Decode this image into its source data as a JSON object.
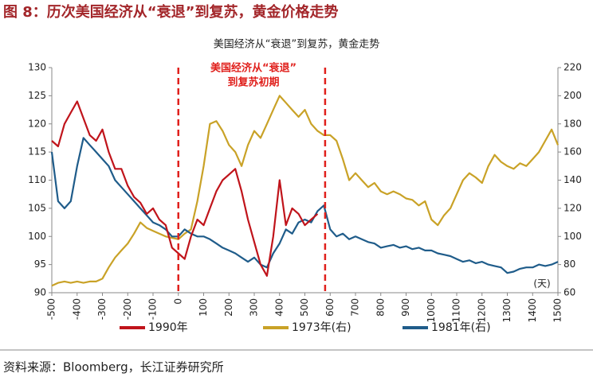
{
  "chart_data": {
    "type": "line",
    "header": "图 8：历次美国经济从“衰退”到复苏，黄金价格走势",
    "title": "美国经济从“衰退”到复苏，黄金走势",
    "annotation": [
      "美国经济从“衰退”",
      "到复苏初期"
    ],
    "x_unit_label": "(天)",
    "source": "资料来源：Bloomberg，长江证券研究所",
    "vlines": [
      0,
      580
    ],
    "x": [
      -500,
      -475,
      -450,
      -425,
      -400,
      -375,
      -350,
      -325,
      -300,
      -275,
      -250,
      -225,
      -200,
      -175,
      -150,
      -125,
      -100,
      -75,
      -50,
      -25,
      0,
      25,
      50,
      75,
      100,
      125,
      150,
      175,
      200,
      225,
      250,
      275,
      300,
      325,
      350,
      375,
      400,
      425,
      450,
      475,
      500,
      525,
      550,
      575,
      600,
      625,
      650,
      675,
      700,
      725,
      750,
      775,
      800,
      825,
      850,
      875,
      900,
      925,
      950,
      975,
      1000,
      1025,
      1050,
      1075,
      1100,
      1125,
      1150,
      1175,
      1200,
      1225,
      1250,
      1275,
      1300,
      1325,
      1350,
      1375,
      1400,
      1425,
      1450,
      1475,
      1500
    ],
    "xlim": [
      -500,
      1500
    ],
    "xticks": [
      -500,
      -400,
      -300,
      -200,
      -100,
      0,
      100,
      200,
      300,
      400,
      500,
      600,
      700,
      800,
      900,
      1000,
      1100,
      1200,
      1300,
      1400,
      1500
    ],
    "ylim": [
      90,
      130
    ],
    "yticks": [
      90,
      95,
      100,
      105,
      110,
      115,
      120,
      125,
      130
    ],
    "y2lim": [
      60,
      220
    ],
    "y2ticks": [
      60,
      80,
      100,
      120,
      140,
      160,
      180,
      200,
      220
    ],
    "series": [
      {
        "name": "1990年",
        "color": "#c0141b",
        "values": [
          117,
          116,
          120,
          122,
          124,
          121,
          118,
          117,
          119,
          115,
          112,
          112,
          109,
          107,
          106,
          104,
          105,
          103,
          102,
          98,
          97,
          96,
          100,
          103,
          102,
          105,
          108,
          110,
          111,
          112,
          108,
          103,
          99,
          95,
          93,
          100,
          110,
          102,
          105,
          104,
          102,
          103,
          104,
          null,
          null,
          null,
          null,
          null,
          null,
          null,
          null,
          null,
          null,
          null,
          null,
          null,
          null,
          null,
          null,
          null,
          null,
          null,
          null,
          null,
          null,
          null,
          null,
          null,
          null,
          null,
          null,
          null,
          null,
          null,
          null,
          null,
          null,
          null,
          null,
          null,
          null
        ]
      },
      {
        "name": "1973年(右)",
        "color": "#c9a227",
        "axis": "y2",
        "values": [
          65,
          67,
          68,
          67,
          68,
          67,
          68,
          68,
          70,
          78,
          85,
          90,
          95,
          102,
          110,
          106,
          104,
          102,
          100,
          99,
          98,
          102,
          105,
          125,
          150,
          180,
          182,
          175,
          165,
          160,
          150,
          165,
          175,
          170,
          180,
          190,
          200,
          195,
          190,
          185,
          190,
          180,
          175,
          172,
          172,
          168,
          155,
          140,
          145,
          140,
          135,
          138,
          132,
          130,
          132,
          130,
          127,
          126,
          122,
          125,
          112,
          108,
          115,
          120,
          130,
          140,
          145,
          142,
          138,
          150,
          158,
          153,
          150,
          148,
          152,
          150,
          155,
          160,
          168,
          176,
          165
        ]
      },
      {
        "name": "1981年(右)",
        "color": "#1f5c8a",
        "axis": "y2",
        "values": [
          160,
          125,
          120,
          125,
          150,
          170,
          165,
          160,
          155,
          150,
          140,
          135,
          130,
          125,
          120,
          115,
          110,
          108,
          105,
          100,
          100,
          105,
          102,
          100,
          100,
          98,
          95,
          92,
          90,
          88,
          85,
          82,
          85,
          80,
          78,
          88,
          95,
          105,
          102,
          110,
          112,
          110,
          118,
          122,
          105,
          100,
          102,
          98,
          100,
          98,
          96,
          95,
          92,
          93,
          94,
          92,
          93,
          91,
          92,
          90,
          90,
          88,
          87,
          86,
          84,
          82,
          83,
          81,
          82,
          80,
          79,
          78,
          74,
          75,
          77,
          78,
          78,
          80,
          79,
          80,
          82
        ]
      }
    ]
  }
}
